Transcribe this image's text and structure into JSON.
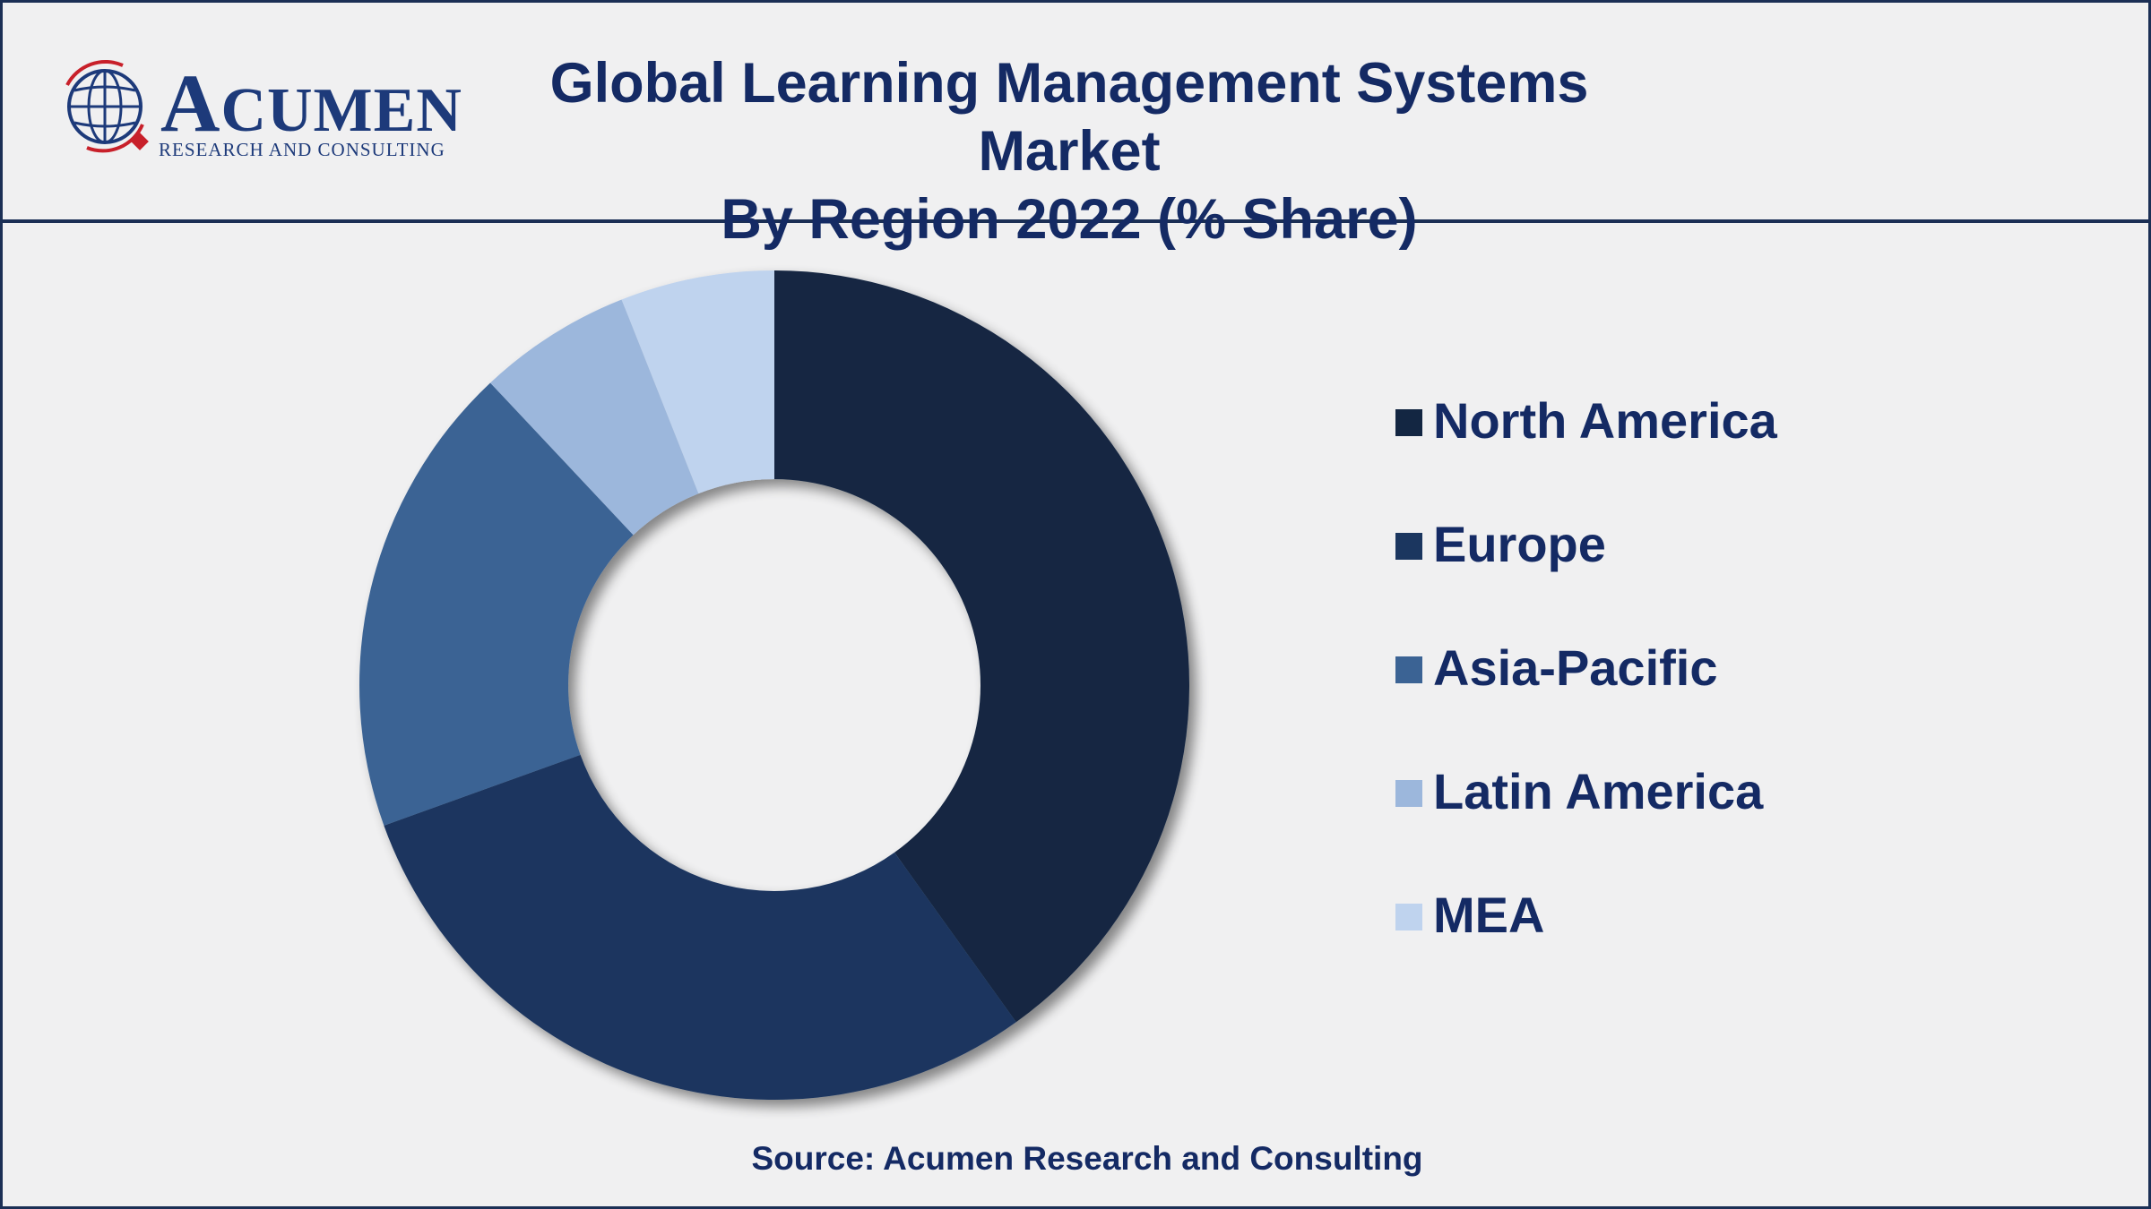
{
  "header": {
    "logo_word_first": "A",
    "logo_word_rest": "CUMEN",
    "logo_tagline": "RESEARCH AND CONSULTING",
    "title_line1": "Global Learning Management Systems Market",
    "title_line2": "By Region 2022 (% Share)"
  },
  "footer": {
    "source": "Source: Acumen Research and Consulting"
  },
  "chart_data": {
    "type": "pie",
    "donut": true,
    "title": "Global Learning Management Systems Market By Region 2022 (% Share)",
    "categories": [
      "North America",
      "Europe",
      "Asia-Pacific",
      "Latin America",
      "MEA"
    ],
    "values": [
      40.1,
      29.4,
      18.5,
      6.0,
      6.0
    ],
    "colors": [
      "#132642",
      "#1b365f",
      "#3b6394",
      "#9cb7dc",
      "#bfd3ee"
    ],
    "legend": "right",
    "start_angle_deg": 0,
    "direction": "clockwise"
  }
}
